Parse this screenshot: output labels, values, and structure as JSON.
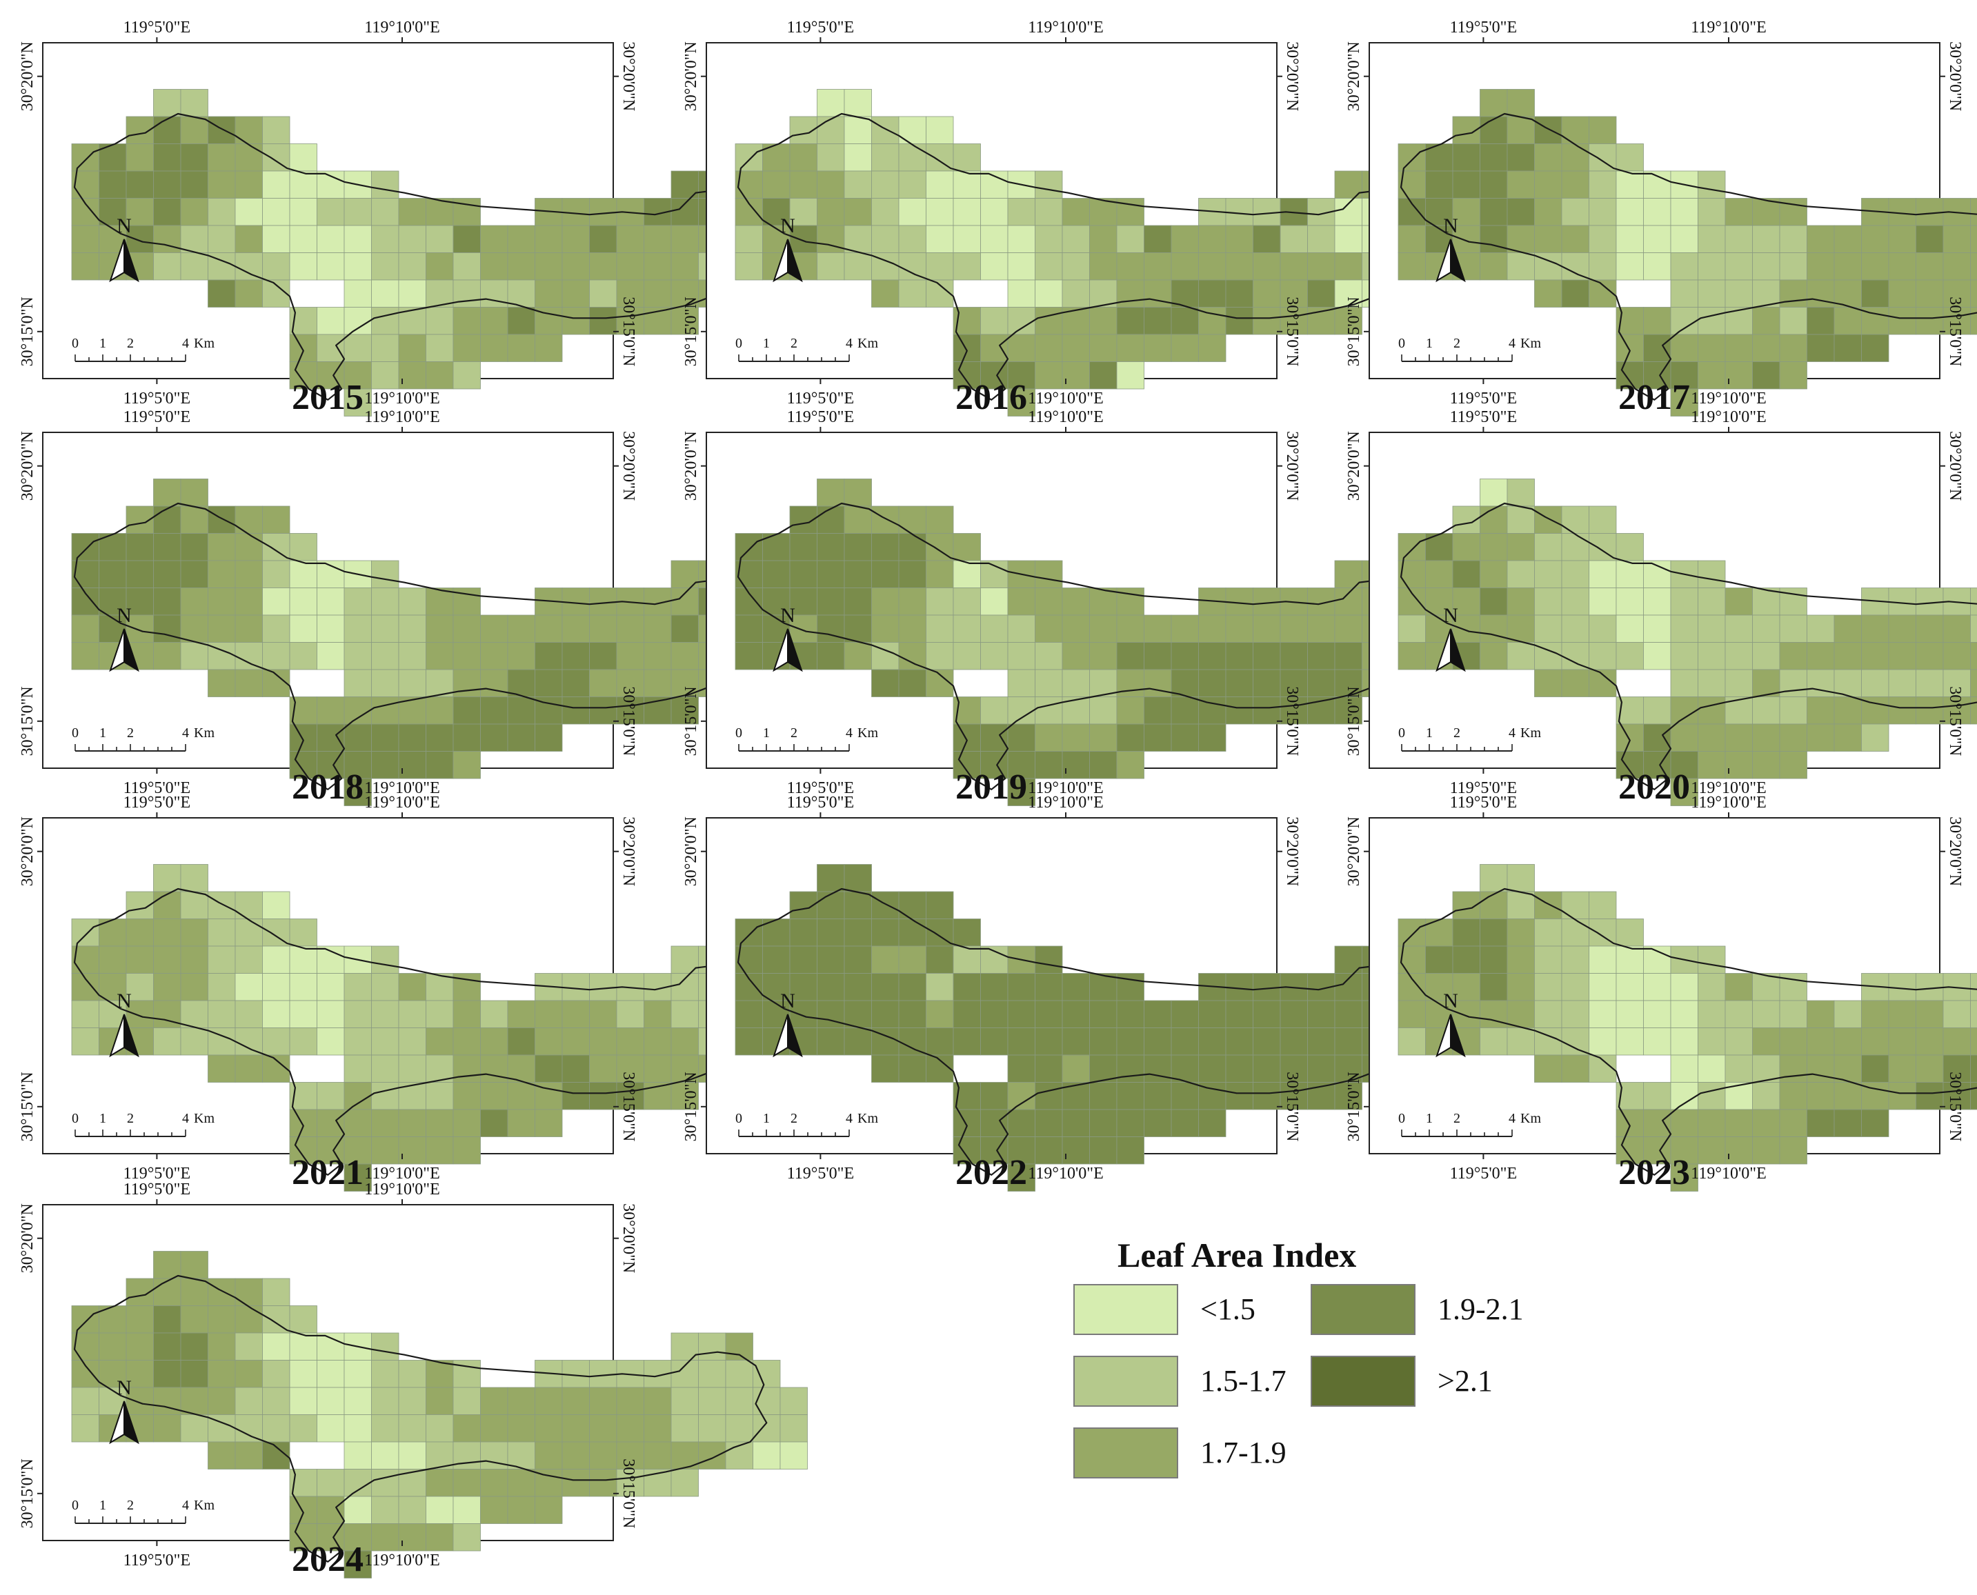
{
  "figure": {
    "panels": [
      {
        "year": "2015",
        "grid": [
          "...........................",
          "...##.....................",
          "..######...................",
          "#########..................",
          "############..........###..",
          "###############..#########.",
          "###########################",
          "###########################",
          ".....###..#################",
          "........###############....",
          "........##########.........",
          "........#######............",
          "..........#................"
        ],
        "values": [
          "...........................",
          "...11.....................",
          "..232321...................",
          "232332210..................",
          "233332200001..........333..",
          "232321000111222222222333323",
          "223211200001113222232222221",
          "222111110001121222222221211",
          ".....321..000111122122221..",
          "........1001112232232223...",
          "........2111212222.........",
          "........2221221............",
          "..........1................"
        ]
      },
      {
        "year": "2016",
        "grid": [
          "...........................",
          "...##.....................",
          "..######...................",
          "#########..................",
          "############..........###..",
          "###############..#########.",
          "###########################",
          "###########################",
          ".....###..#################",
          "........###############....",
          "........##########.........",
          "........#######............",
          "..........#................"
        ],
        "values": [
          "...........................",
          "...00.....................",
          "..110100...................",
          "122101111..................",
          "222211100001..........222..",
          "231221000011222211113100021",
          "123211100001121322231100011",
          "122111111001122222222221101",
          ".....211..001122333223000..",
          "........211222333232222....",
          "........3222222222.........",
          "........333223.............",
          "..........2................"
        ]
      },
      {
        "year": "2017",
        "grid": [
          "...........................",
          "...##.....................",
          "..######...................",
          "#########..................",
          "############..........###..",
          "###############..#########.",
          "###########################",
          "###########################",
          ".....###..#################",
          "........###############....",
          "........##########.........",
          "........#######............",
          "..........#................"
        ],
        "values": [
          "...........................",
          "...22.....................",
          "..232322...................",
          "233332211..................",
          "233322210001..........222..",
          "332332110001222222222223322",
          "232322210001111222232223321",
          "222211110011111222222222011",
          ".....232..111122232222220..",
          "........2211121322222222...",
          "........2322222333........",
          "........3332232............",
          "..........2................"
        ]
      },
      {
        "year": "2018",
        "grid": [
          "...........................",
          "...##.....................",
          "..######...................",
          "#########..................",
          "############..........###..",
          "###############..#########.",
          "###########################",
          "###########################",
          ".....###..#################",
          "........###############....",
          "........##########.........",
          "........#######............",
          "..........#................"
        ],
        "values": [
          "...........................",
          "...22.....................",
          "..232322...................",
          "333332211..................",
          "333332210001..........222..",
          "333322200011122222222223322",
          "232322210011122222222232222",
          "222211111011122223332222222",
          ".....222..111122333222222..",
          "........2222223333333333...",
          "........3333333333.........",
          "........3333332............",
          "..........3................"
        ]
      },
      {
        "year": "2019",
        "grid": [
          "...........................",
          "...##.....................",
          "..######...................",
          "#########..................",
          "############..........###..",
          "###############..#########.",
          "###########################",
          "###########################",
          ".....###..#################",
          "........###############....",
          "........##########.........",
          "........#######............",
          "..........#................"
        ],
        "values": [
          "...........................",
          "...22.....................",
          "..332222...................",
          "333333322..................",
          "333333320122..........222..",
          "333332211022222222222222322",
          "332332211112222222222222222",
          "333321211111223333333332222",
          ".....332..111122333333322..",
          "........2111112333333333...",
          "........3332223333.........",
          "........3333332............",
          "..........3................"
        ]
      },
      {
        "year": "2020",
        "grid": [
          "...........................",
          "...##.....................",
          "..######...................",
          "#########..................",
          "############..........###..",
          "###############..#########.",
          "###########################",
          "###########################",
          ".....###..#################",
          "........###############....",
          "........##########.........",
          "........#######............",
          "..........#................"
        ],
        "values": [
          "...........................",
          "...01.....................",
          "..121211...................",
          "232221111..................",
          "223211100011..........112..",
          "222321100011211121111111111",
          "122221110011111122222111111",
          "223211111011112222222222111",
          ".....222..111211111112221..",
          "........1122111222222222...",
          "........2322222221........",
          "........3332222............",
          "..........2................"
        ]
      },
      {
        "year": "2021",
        "grid": [
          "...........................",
          "...##.....................",
          "..######...................",
          "#########..................",
          "############..........###..",
          "###############..#########.",
          "###########################",
          "###########################",
          ".....###..#################",
          "........###############....",
          "........##########.........",
          "........#######............",
          "..........#................"
        ],
        "values": [
          "...........................",
          "...11.....................",
          "..121110...................",
          "122221111..................",
          "222221100001..........111..",
          "221221000011212211111111100",
          "112211100011112122221211011",
          "122111111011122232222221111",
          ".....222..111122233222220..",
          "........1121112222333221...",
          "........2222222322.........",
          "........2222222............",
          "..........3................"
        ]
      },
      {
        "year": "2022",
        "grid": [
          "...........................",
          "...##.....................",
          "..######...................",
          "#########..................",
          "############..........###..",
          "###############..#########.",
          "###########################",
          "###########################",
          ".....###..#################",
          "........###############....",
          "........##########.........",
          "........#######............",
          "..........#................"
        ],
        "values": [
          "...........................",
          "...33.....................",
          "..333333...................",
          "333333333..................",
          "333332231123..........333..",
          "333333313333333333333333333",
          "333333323333333333333333333",
          "333333333333333333333333333",
          ".....333..332333333333333..",
          "........3323333333333333...",
          "........3333333333.........",
          "........3333333............",
          "..........3................"
        ]
      },
      {
        "year": "2023",
        "grid": [
          "...........................",
          "...##.....................",
          "..######...................",
          "#########..................",
          "############..........###..",
          "###############..#########.",
          "###########################",
          "###########################",
          ".....###..#################",
          "........###############....",
          "........##########.........",
          "........#######............",
          "..........#................"
        ],
        "values": [
          "...........................",
          "...11.....................",
          "..221211...................",
          "223321111..................",
          "233321100011..........112..",
          "222321100001211111111111223",
          "222221100001111212221111112",
          "122111100001122222222221111",
          ".....221..001122232233322..",
          "........1101012222233322...",
          "........2222222333.........",
          "........2222222............",
          "..........2................"
        ]
      },
      {
        "year": "2024",
        "grid": [
          "...........................",
          "...##.....................",
          "..######...................",
          "#########..................",
          "############..........###..",
          "###############..#########.",
          "###########################",
          "###########################",
          ".....###..#################",
          "........###############....",
          "........##########.........",
          "........#######............",
          "..........#................"
        ],
        "values": [
          "...........................",
          "...22.....................",
          "..222221...................",
          "222322211..................",
          "222332100001..........112..",
          "222332210001121111111111111",
          "112222110001121222222211111",
          "122211111001112222222211111",
          ".....223..000111122222221..",
          "........1111122222221111...",
          "........2201100222.........",
          "........2222221............",
          "..........3................"
        ]
      }
    ],
    "axis_labels": {
      "lon_left": "119°5'0\"E",
      "lon_right": "119°10'0\"E",
      "lat_top": "30°20'0\"N",
      "lat_bottom": "30°15'0\"N"
    },
    "north_arrow_label": "N",
    "scale_bar": {
      "ticks": [
        "0",
        "1",
        "2",
        "4"
      ],
      "unit": "Km"
    }
  },
  "legend": {
    "title": "Leaf Area Index",
    "classes": [
      {
        "label": "<1.5",
        "color": "#d6edb0"
      },
      {
        "label": "1.5-1.7",
        "color": "#b5c98c"
      },
      {
        "label": "1.7-1.9",
        "color": "#97a965"
      },
      {
        "label": "1.9-2.1",
        "color": "#7a8c4b"
      },
      {
        "label": ">2.1",
        "color": "#5f6f31"
      }
    ]
  }
}
